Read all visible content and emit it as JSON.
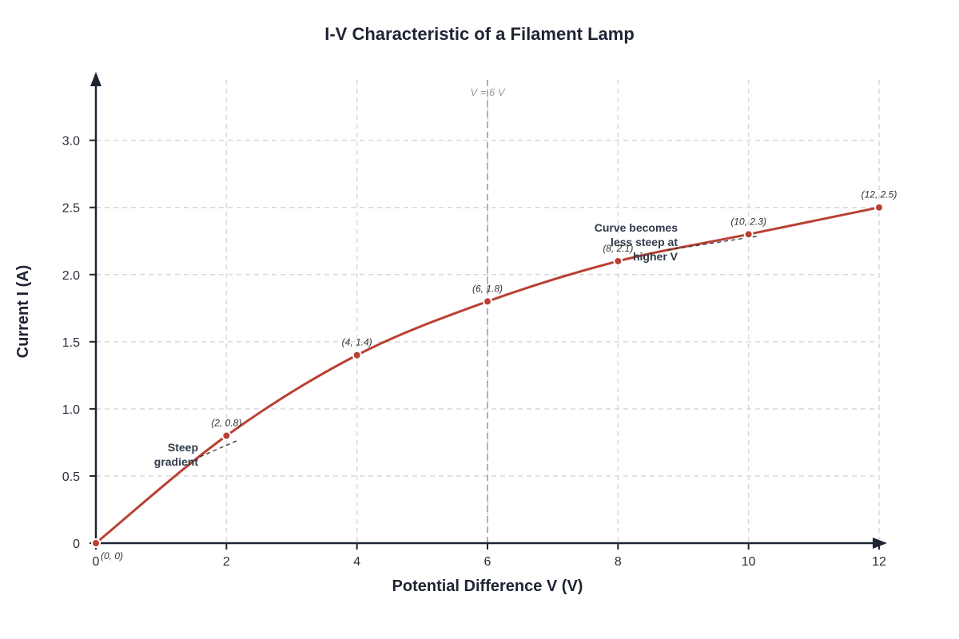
{
  "chart_data": {
    "type": "line",
    "title": "I-V Characteristic of a Filament Lamp",
    "xlabel": "Potential Difference V (V)",
    "ylabel": "Current I (A)",
    "xlim": [
      0,
      12
    ],
    "ylim": [
      0,
      3.4
    ],
    "x_ticks": [
      0,
      2,
      4,
      6,
      8,
      10,
      12
    ],
    "x_tick_labels": [
      "0",
      "2",
      "4",
      "6",
      "8",
      "10",
      "12"
    ],
    "y_ticks": [
      0,
      0.5,
      1.0,
      1.5,
      2.0,
      2.5,
      3.0
    ],
    "y_tick_labels": [
      "0",
      "0.5",
      "1.0",
      "1.5",
      "2.0",
      "2.5",
      "3.0"
    ],
    "grid": true,
    "series": [
      {
        "color": "#b94133",
        "points": [
          {
            "x": 0,
            "y": 0,
            "label": "(0, 0)"
          },
          {
            "x": 2,
            "y": 0.8,
            "label": "(2, 0.8)"
          },
          {
            "x": 4,
            "y": 1.4,
            "label": "(4, 1.4)"
          },
          {
            "x": 6,
            "y": 1.8,
            "label": "(6, 1.8)"
          },
          {
            "x": 8,
            "y": 2.1,
            "label": "(8, 2.1)"
          },
          {
            "x": 10,
            "y": 2.3,
            "label": "(10, 2.3)"
          },
          {
            "x": 12,
            "y": 2.5,
            "label": "(12, 2.5)"
          }
        ]
      }
    ],
    "reference_line": {
      "x": 6,
      "label": "V = 6 V",
      "color": "#9a9a9a"
    },
    "annotations": [
      {
        "lines": [
          "Steep",
          "gradient"
        ],
        "target": {
          "x": 2,
          "y": 0.8
        }
      },
      {
        "lines": [
          "Curve becomes",
          "less steep at",
          "higher V"
        ],
        "target": {
          "x": 10,
          "y": 2.3
        }
      }
    ],
    "colors": {
      "curve": "#b94133",
      "axis": "#1f2433",
      "grid": "#d9d9d9",
      "text": "#1f2433",
      "annotation": "#2f3a4a"
    }
  }
}
